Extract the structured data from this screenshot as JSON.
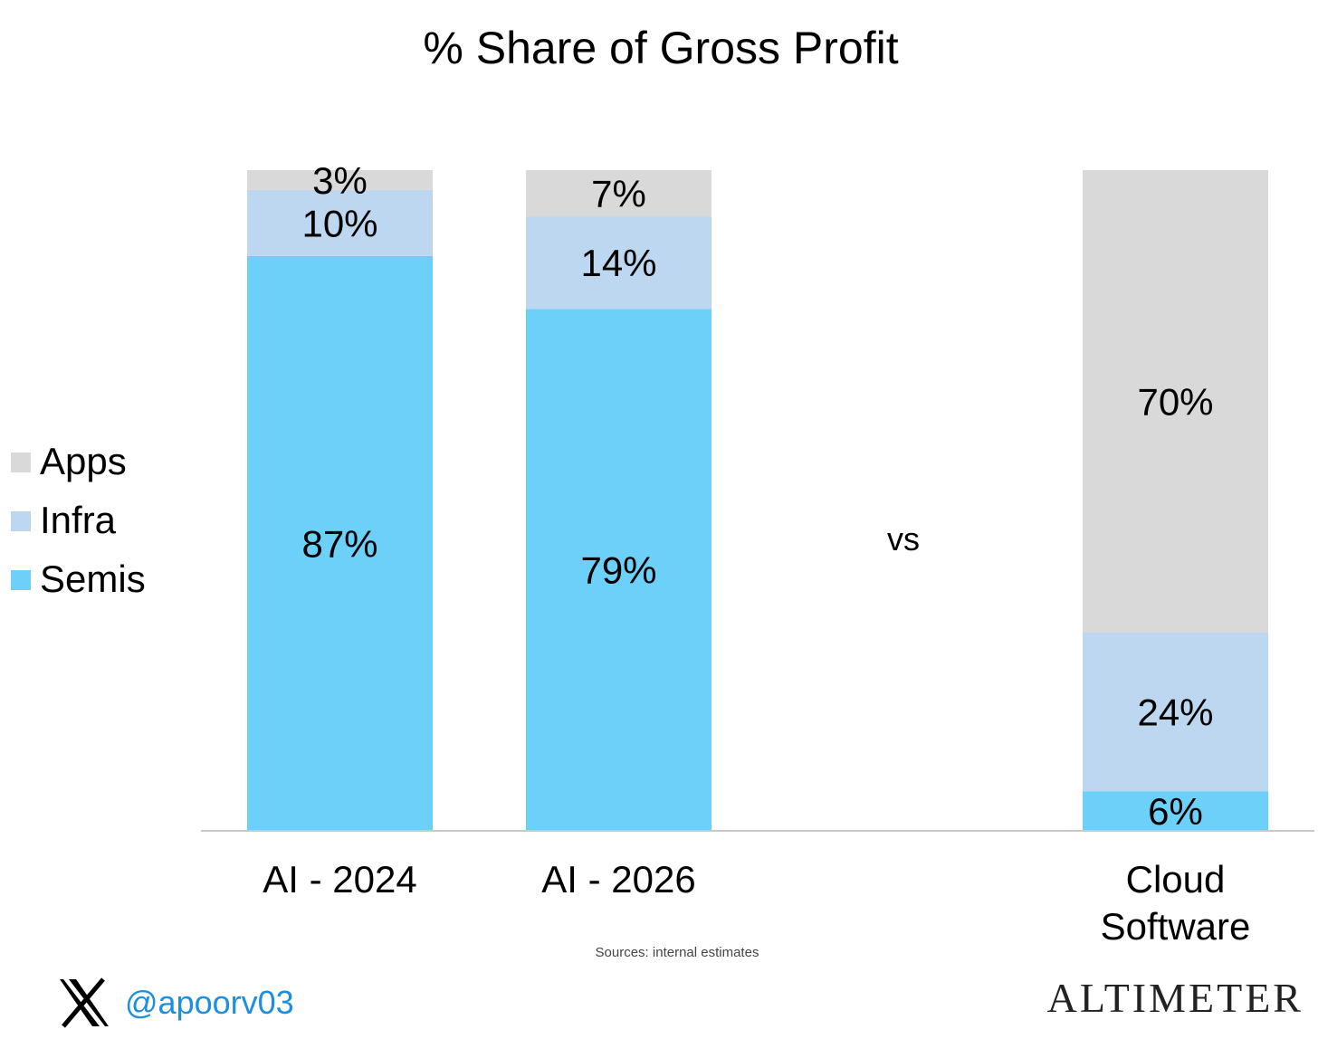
{
  "chart_data": {
    "type": "bar",
    "stacked": true,
    "title": "% Share of Gross Profit",
    "categories": [
      "AI - 2024",
      "AI - 2026",
      "Cloud Software"
    ],
    "category_lines": [
      [
        "AI - 2024"
      ],
      [
        "AI - 2026"
      ],
      [
        "Cloud",
        "Software"
      ]
    ],
    "series": [
      {
        "name": "Semis",
        "values": [
          87,
          79,
          6
        ],
        "labels": [
          "87%",
          "79%",
          "6%"
        ],
        "color": "#6dd0f8"
      },
      {
        "name": "Infra",
        "values": [
          10,
          14,
          24
        ],
        "labels": [
          "10%",
          "14%",
          "24%"
        ],
        "color": "#bdd7f0"
      },
      {
        "name": "Apps",
        "values": [
          3,
          7,
          70
        ],
        "labels": [
          "3%",
          "7%",
          "70%"
        ],
        "color": "#d9d9d9"
      }
    ],
    "ylim": [
      0,
      100
    ],
    "grid": false,
    "legend_position": "left",
    "legend_order": [
      "Apps",
      "Infra",
      "Semis"
    ],
    "annotation": "vs",
    "source_note": "Sources: internal estimates"
  },
  "footer": {
    "handle": "@apoorv03",
    "brand": "ALTIMETER",
    "x_icon": "x-logo-icon"
  }
}
